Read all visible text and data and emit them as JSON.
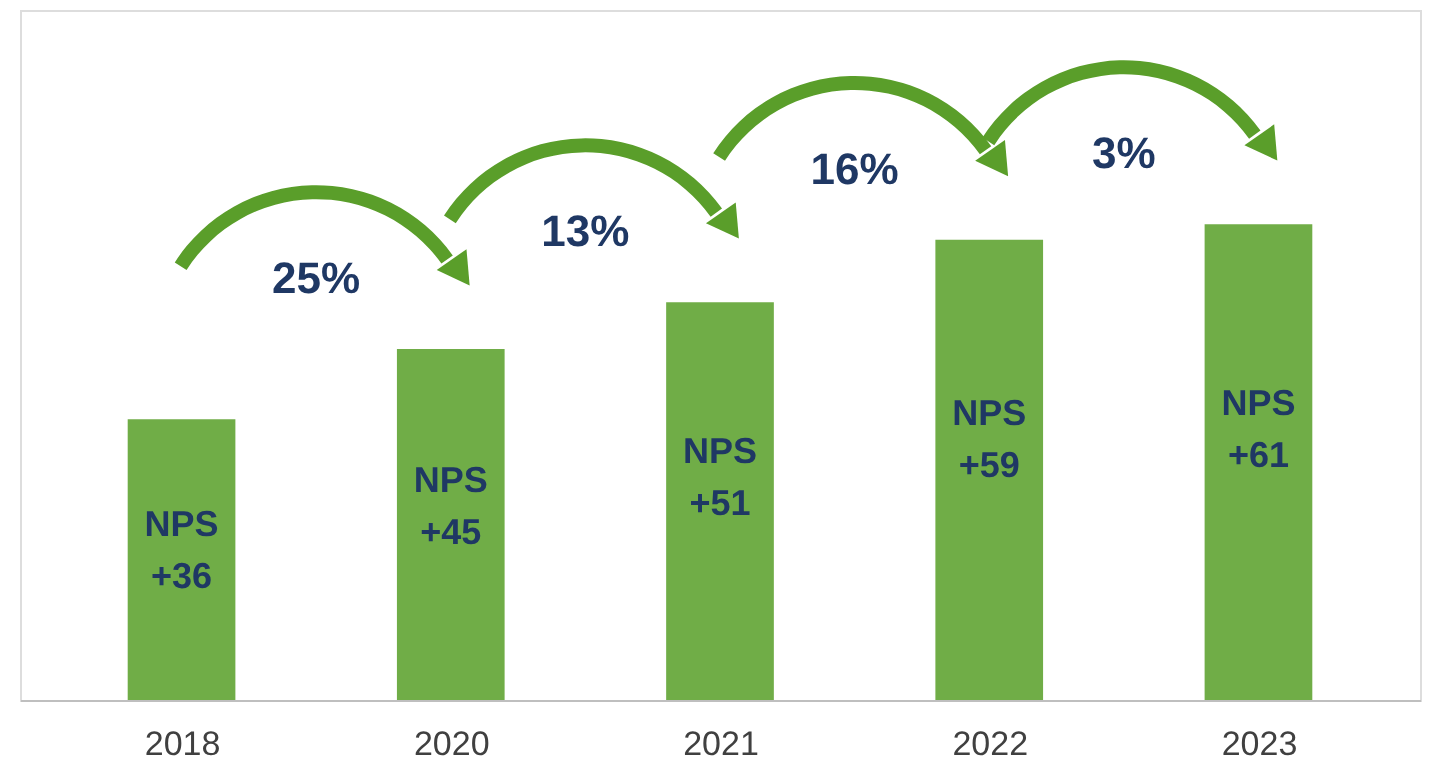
{
  "chart_data": {
    "type": "bar",
    "categories": [
      "2018",
      "2020",
      "2021",
      "2022",
      "2023"
    ],
    "values": [
      36,
      45,
      51,
      59,
      61
    ],
    "color": "#70ad47",
    "value_labels": [
      "NPS +36",
      "NPS +45",
      "NPS +51",
      "NPS +59",
      "NPS +61"
    ],
    "annotations": [
      "25%",
      "13%",
      "16%",
      "3%"
    ],
    "grid": false
  }
}
